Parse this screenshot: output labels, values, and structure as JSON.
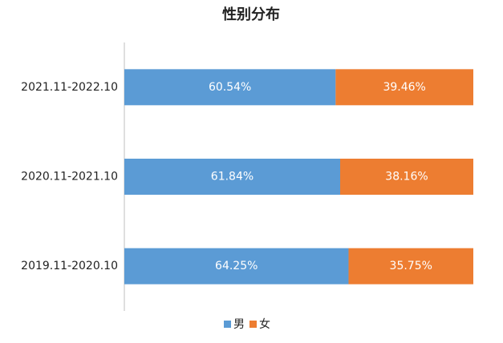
{
  "chart_data": {
    "type": "stacked-bar-horizontal",
    "title": "性别分布",
    "categories": [
      "2021.11-2022.10",
      "2020.11-2021.10",
      "2019.11-2020.10"
    ],
    "series": [
      {
        "name": "男",
        "color": "#5b9bd5",
        "values": [
          60.54,
          61.84,
          64.25
        ],
        "value_labels": [
          "60.54%",
          "61.84%",
          "64.25%"
        ]
      },
      {
        "name": "女",
        "color": "#ed7d31",
        "values": [
          39.46,
          38.16,
          35.75
        ],
        "value_labels": [
          "39.46%",
          "38.16%",
          "35.75%"
        ]
      }
    ],
    "xlim": [
      0,
      100
    ],
    "legend": "bottom"
  }
}
